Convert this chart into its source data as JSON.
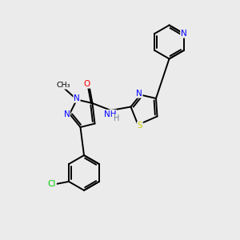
{
  "background_color": "#ebebeb",
  "bond_color": "#000000",
  "atom_colors": {
    "N": "#0000ff",
    "O": "#ff0000",
    "S": "#cccc00",
    "Cl": "#00cc00",
    "C": "#000000",
    "H": "#708090"
  },
  "figsize": [
    3.0,
    3.0
  ],
  "dpi": 100,
  "xlim": [
    0,
    10
  ],
  "ylim": [
    0,
    10
  ]
}
